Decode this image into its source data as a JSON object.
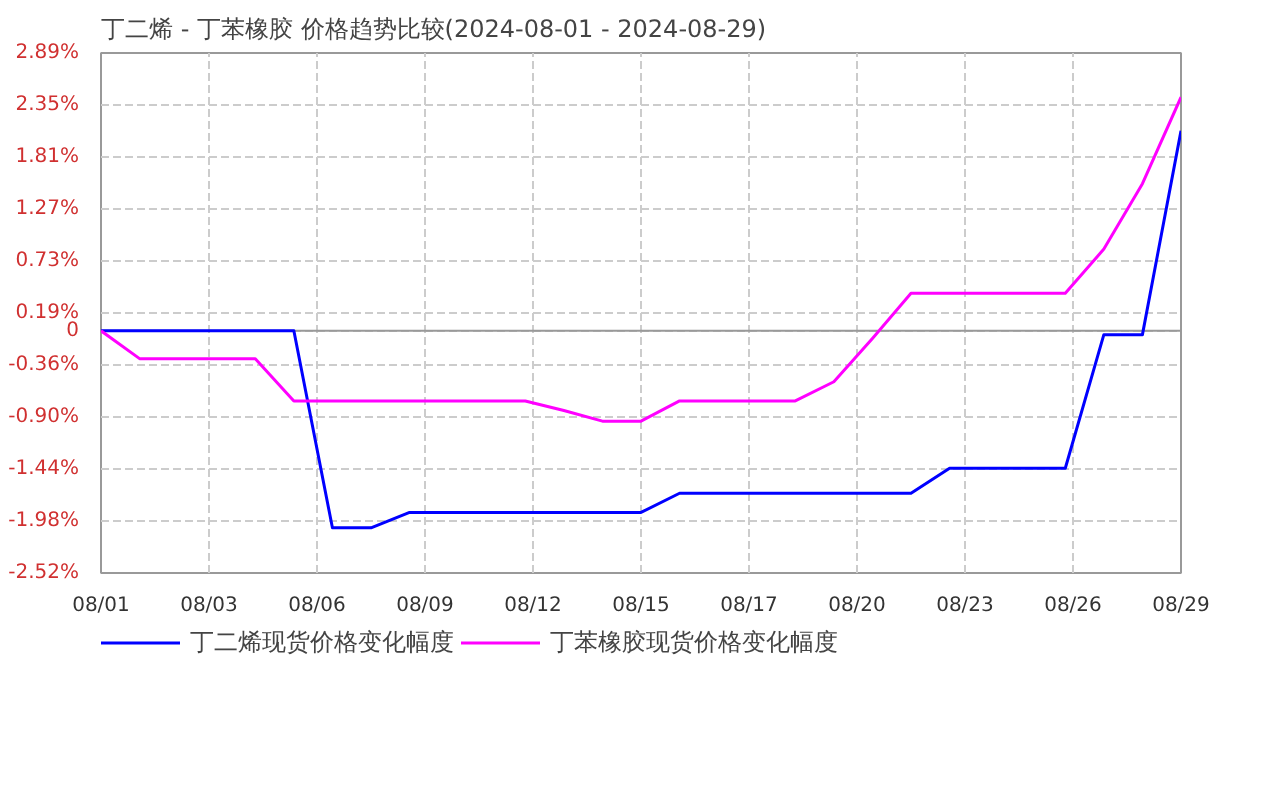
{
  "chart_data": {
    "type": "line",
    "title": "丁二烯 - 丁苯橡胶 价格趋势比较(2024-08-01 - 2024-08-29)",
    "x": [
      "2024-08-01",
      "2024-08-02",
      "2024-08-05",
      "2024-08-06",
      "2024-08-07",
      "2024-08-08",
      "2024-08-09",
      "2024-08-12",
      "2024-08-13",
      "2024-08-14",
      "2024-08-15",
      "2024-08-16",
      "2024-08-19",
      "2024-08-20",
      "2024-08-21",
      "2024-08-22",
      "2024-08-23",
      "2024-08-26",
      "2024-08-27",
      "2024-08-28",
      "2024-08-29"
    ],
    "series": [
      {
        "name": "丁二烯现货价格变化幅度",
        "color": "#0000ff",
        "values": [
          0,
          0,
          0,
          0,
          -2.05,
          -2.05,
          -1.89,
          -1.89,
          -1.89,
          -1.89,
          -1.89,
          -1.69,
          -1.69,
          -1.69,
          -1.69,
          -1.69,
          -1.43,
          -1.43,
          -0.04,
          -0.04,
          2.08
        ]
      },
      {
        "name": "丁苯橡胶现货价格变化幅度",
        "color": "#ff00ff",
        "values": [
          0,
          -0.29,
          -0.29,
          -0.73,
          -0.73,
          -0.73,
          -0.73,
          -0.73,
          -0.83,
          -0.94,
          -0.94,
          -0.73,
          -0.73,
          -0.53,
          -0.08,
          0.39,
          0.39,
          0.39,
          0.85,
          1.53,
          2.43
        ]
      }
    ],
    "xlim": [
      "2024-08-01",
      "2024-08-29"
    ],
    "xticks": [
      {
        "value": "2024-08-01",
        "label": "08/01"
      },
      {
        "value": "2024-08-03T19:12",
        "label": "08/03"
      },
      {
        "value": "2024-08-06T14:24",
        "label": "08/06"
      },
      {
        "value": "2024-08-09T09:36",
        "label": "08/09"
      },
      {
        "value": "2024-08-12T04:48",
        "label": "08/12"
      },
      {
        "value": "2024-08-15",
        "label": "08/15"
      },
      {
        "value": "2024-08-17T19:12",
        "label": "08/17"
      },
      {
        "value": "2024-08-20T14:24",
        "label": "08/20"
      },
      {
        "value": "2024-08-23T09:36",
        "label": "08/23"
      },
      {
        "value": "2024-08-26T04:48",
        "label": "08/26"
      },
      {
        "value": "2024-08-29",
        "label": "08/29"
      }
    ],
    "ylim": [
      -2.52,
      2.89
    ],
    "yticks": [
      {
        "value": 2.89,
        "label": "2.89%"
      },
      {
        "value": 2.35,
        "label": "2.35%"
      },
      {
        "value": 1.81,
        "label": "1.81%"
      },
      {
        "value": 1.27,
        "label": "1.27%"
      },
      {
        "value": 0.73,
        "label": "0.73%"
      },
      {
        "value": 0.19,
        "label": "0.19%"
      },
      0,
      {
        "value": -0.36,
        "label": "-0.36%"
      },
      {
        "value": -0.9,
        "label": "-0.90%"
      },
      {
        "value": -1.44,
        "label": "-1.44%"
      },
      {
        "value": -1.98,
        "label": "-1.98%"
      },
      {
        "value": -2.52,
        "label": "-2.52%"
      }
    ],
    "ref_lines": [
      {
        "axis": "y",
        "value": 0,
        "color": "#999999"
      }
    ],
    "grid": true,
    "legend": "bottom",
    "marker": "none",
    "line_style": "solid"
  }
}
